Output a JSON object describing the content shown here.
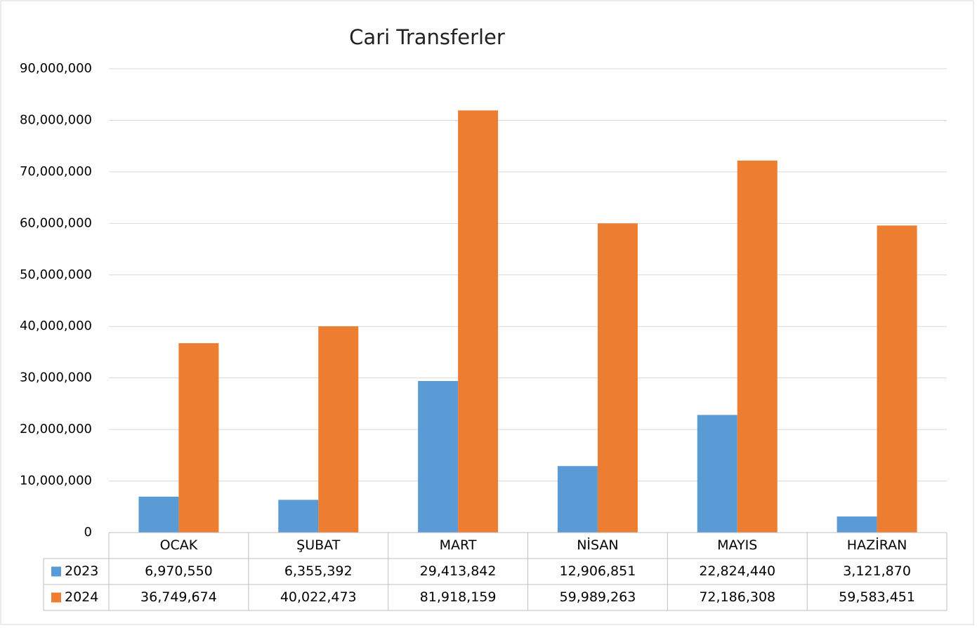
{
  "chart_data": {
    "type": "bar",
    "title": "Cari Transferler",
    "categories": [
      "OCAK",
      "ŞUBAT",
      "MART",
      "NİSAN",
      "MAYIS",
      "HAZİRAN"
    ],
    "series": [
      {
        "name": "2023",
        "color": "#5b9bd5",
        "values": [
          6970550,
          6355392,
          29413842,
          12906851,
          22824440,
          3121870
        ],
        "value_labels": [
          "6,970,550",
          "6,355,392",
          "29,413,842",
          "12,906,851",
          "22,824,440",
          "3,121,870"
        ]
      },
      {
        "name": "2024",
        "color": "#ed7d31",
        "values": [
          36749674,
          40022473,
          81918159,
          59989263,
          72186308,
          59583451
        ],
        "value_labels": [
          "36,749,674",
          "40,022,473",
          "81,918,159",
          "59,989,263",
          "72,186,308",
          "59,583,451"
        ]
      }
    ],
    "ylim": [
      0,
      90000000
    ],
    "yticks": [
      0,
      {
        "value": 10000000,
        "label": "10,000,000"
      },
      {
        "value": 20000000,
        "label": "20,000,000"
      },
      {
        "value": 30000000,
        "label": "30,000,000"
      },
      {
        "value": 40000000,
        "label": "40,000,000"
      },
      {
        "value": 50000000,
        "label": "50,000,000"
      },
      {
        "value": 60000000,
        "label": "60,000,000"
      },
      {
        "value": 70000000,
        "label": "70,000,000"
      },
      {
        "value": 80000000,
        "label": "80,000,000"
      },
      {
        "value": 90000000,
        "label": "90,000,000"
      }
    ],
    "grid": true
  }
}
